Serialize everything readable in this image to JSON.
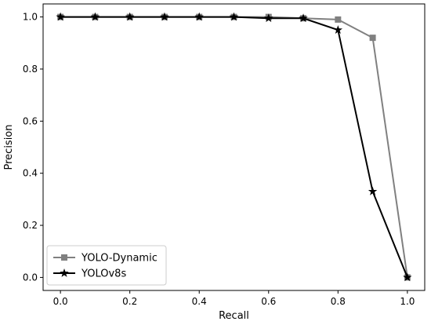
{
  "chart_data": {
    "type": "line",
    "xlabel": "Recall",
    "ylabel": "Precision",
    "xlim": [
      -0.05,
      1.05
    ],
    "ylim": [
      -0.05,
      1.05
    ],
    "xticks": [
      {
        "value": 0.0,
        "label": "0.0"
      },
      {
        "value": 0.2,
        "label": "0.2"
      },
      {
        "value": 0.4,
        "label": "0.4"
      },
      {
        "value": 0.6,
        "label": "0.6"
      },
      {
        "value": 0.8,
        "label": "0.8"
      },
      {
        "value": 1.0,
        "label": "1.0"
      }
    ],
    "yticks": [
      {
        "value": 0.0,
        "label": "0.0"
      },
      {
        "value": 0.2,
        "label": "0.2"
      },
      {
        "value": 0.4,
        "label": "0.4"
      },
      {
        "value": 0.6,
        "label": "0.6"
      },
      {
        "value": 0.8,
        "label": "0.8"
      },
      {
        "value": 1.0,
        "label": "1.0"
      }
    ],
    "grid": false,
    "legend_position": "bottom-left",
    "series": [
      {
        "name": "YOLO-Dynamic",
        "color": "#808080",
        "marker": "square",
        "x": [
          0.0,
          0.1,
          0.2,
          0.3,
          0.4,
          0.5,
          0.6,
          0.7,
          0.8,
          0.9,
          1.0
        ],
        "y": [
          1.0,
          1.0,
          1.0,
          1.0,
          1.0,
          1.0,
          1.0,
          0.995,
          0.99,
          0.92,
          0.0
        ]
      },
      {
        "name": "YOLOv8s",
        "color": "#000000",
        "marker": "star",
        "x": [
          0.0,
          0.1,
          0.2,
          0.3,
          0.4,
          0.5,
          0.6,
          0.7,
          0.8,
          0.9,
          1.0
        ],
        "y": [
          1.0,
          1.0,
          1.0,
          1.0,
          1.0,
          1.0,
          0.995,
          0.995,
          0.95,
          0.33,
          0.0
        ]
      }
    ]
  }
}
